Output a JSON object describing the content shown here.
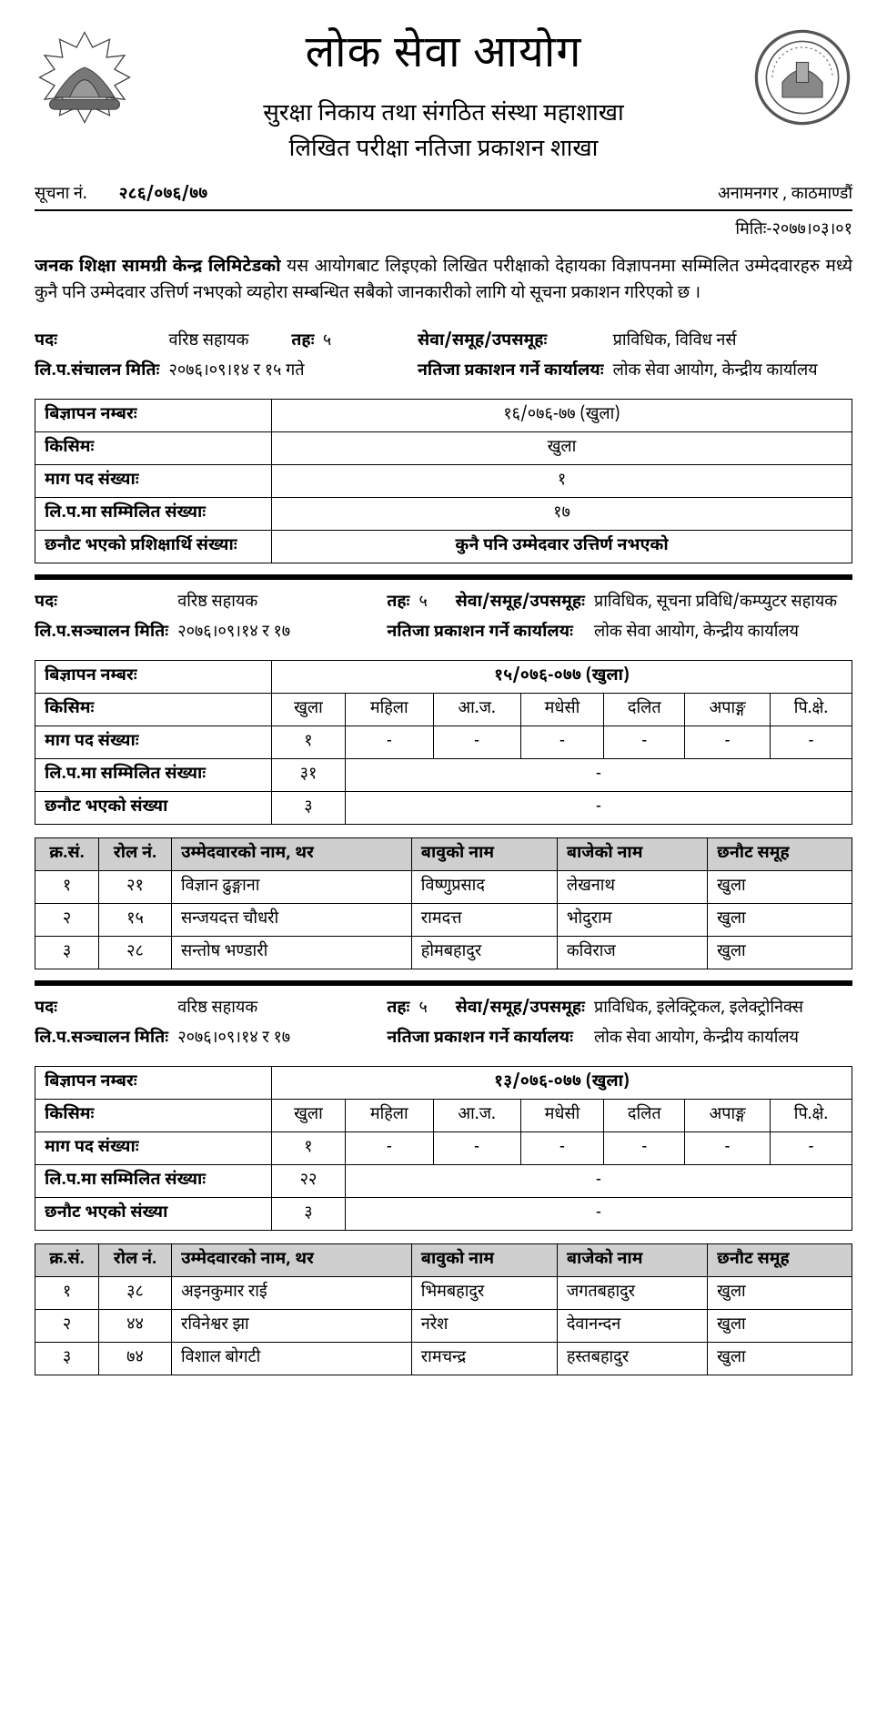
{
  "header": {
    "main_title": "लोक सेवा आयोग",
    "sub_title_1": "सुरक्षा निकाय तथा संगठित संस्था महाशाखा",
    "sub_title_2": "लिखित परीक्षा नतिजा प्रकाशन शाखा",
    "notice_label": "सूचना नं.",
    "notice_value": "२८६/०७६/७७",
    "location": "अनामनगर ,  काठमाण्डौं",
    "date_label": "मितिः-",
    "date_value": "२०७७।०३।०१"
  },
  "intro": {
    "org_bold": "जनक शिक्षा सामग्री केन्द्र लिमिटेडको",
    "rest": " यस आयोगबाट लिइएको लिखित परीक्षाको देहायका विज्ञापनमा सम्मिलित उम्मेदवारहरु मध्ये कुनै पनि उम्मेदवार उत्तिर्ण नभएको व्यहोरा सम्बन्धित सबैको जानकारीको लागि यो सूचना प्रकाशन गरिएको छ ।"
  },
  "labels": {
    "post": "पदः",
    "level": "तहः",
    "svc": "सेवा/समूह/उपसमूहः",
    "exam_date": "लि.प.संचालन मितिः",
    "exam_date2": "लि.प.सञ्चालन मितिः",
    "pub_office": "नतिजा प्रकाशन गर्ने कार्यालयः"
  },
  "info_labels": {
    "adv": "बिज्ञापन नम्बरः",
    "kisim": "किसिमः",
    "demand": "माग पद संख्याः",
    "appeared": "लि.प.मा सम्मिलित संख्याः",
    "selected_trainee": "छनौट भएको प्रशिक्षार्थि संख्याः",
    "selected": "छनौट भएको संख्या"
  },
  "cat_headers": [
    "खुला",
    "महिला",
    "आ.ज.",
    "मधेसी",
    "दलित",
    "अपाङ्ग",
    "पि.क्षे."
  ],
  "cand_headers": {
    "sn": "क्र.सं.",
    "roll": "रोल नं.",
    "name": "उम्मेदवारको नाम, थर",
    "father": "बावुको नाम",
    "gfather": "बाजेको नाम",
    "group": "छनौट समूह"
  },
  "section1": {
    "post": "वरिष्ठ सहायक",
    "level": "५",
    "svc": "प्राविधिक, विविध नर्स",
    "exam_date": "२०७६।०९।१४ र १५ गते",
    "pub_office": "लोक सेवा आयोग, केन्द्रीय कार्यालय",
    "info": {
      "adv": "१६/०७६-७७ (खुला)",
      "kisim": "खुला",
      "demand": "१",
      "appeared": "१७",
      "selected": "कुनै पनि उम्मेदवार उत्तिर्ण नभएको"
    }
  },
  "section2": {
    "post": "वरिष्ठ सहायक",
    "level": "५",
    "svc": "प्राविधिक, सूचना प्रविधि/कम्प्युटर सहायक",
    "exam_date": "२०७६।०९।१४ र १७",
    "pub_office": "लोक सेवा आयोग, केन्द्रीय कार्यालय",
    "adv_no": "१५/०७६-०७७ (खुला)",
    "demand_row": [
      "१",
      "-",
      "-",
      "-",
      "-",
      "-",
      "-"
    ],
    "appeared": "३१",
    "appeared_rest": "-",
    "selected": "३",
    "selected_rest": "-",
    "candidates": [
      {
        "sn": "१",
        "roll": "२१",
        "name": "विज्ञान ढुङ्गाना",
        "father": "विष्णुप्रसाद",
        "gfather": "लेखनाथ",
        "group": "खुला"
      },
      {
        "sn": "२",
        "roll": "१५",
        "name": "सन्जयदत्त चौधरी",
        "father": "रामदत्त",
        "gfather": "भोदुराम",
        "group": "खुला"
      },
      {
        "sn": "३",
        "roll": "२८",
        "name": "सन्तोष भण्डारी",
        "father": "होमबहादुर",
        "gfather": "कविराज",
        "group": "खुला"
      }
    ]
  },
  "section3": {
    "post": "वरिष्ठ सहायक",
    "level": "५",
    "svc": "प्राविधिक, इलेक्ट्रिकल, इलेक्ट्रोनिक्स",
    "exam_date": "२०७६।०९।१४ र १७",
    "pub_office": "लोक सेवा आयोग, केन्द्रीय कार्यालय",
    "adv_no": "१३/०७६-०७७ (खुला)",
    "demand_row": [
      "१",
      "-",
      "-",
      "-",
      "-",
      "-",
      "-"
    ],
    "appeared": "२२",
    "appeared_rest": "-",
    "selected": "३",
    "selected_rest": "-",
    "candidates": [
      {
        "sn": "१",
        "roll": "३८",
        "name": "अइनकुमार राई",
        "father": "भिमबहादुर",
        "gfather": "जगतबहादुर",
        "group": "खुला"
      },
      {
        "sn": "२",
        "roll": "४४",
        "name": "रविनेश्वर झा",
        "father": "नरेश",
        "gfather": "देवानन्दन",
        "group": "खुला"
      },
      {
        "sn": "३",
        "roll": "७४",
        "name": "विशाल बोगटी",
        "father": "रामचन्द्र",
        "gfather": "हस्तबहादुर",
        "group": "खुला"
      }
    ]
  },
  "style": {
    "text_color": "#000000",
    "background": "#ffffff",
    "header_bg": "#cfcfcf",
    "border_color": "#000000",
    "title_fontsize": 48,
    "subtitle_fontsize": 26,
    "body_fontsize": 19,
    "table_fontsize": 18
  }
}
